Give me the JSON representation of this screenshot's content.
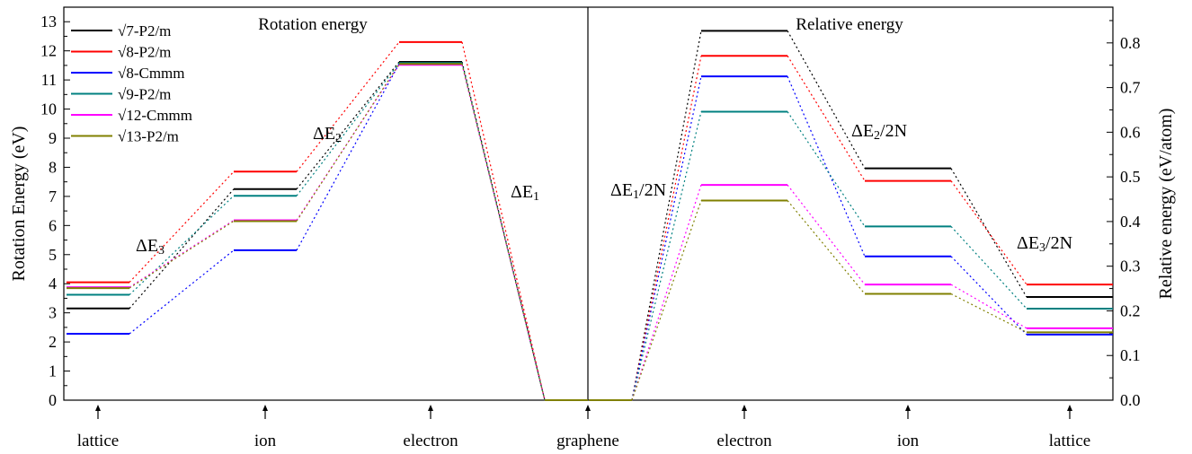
{
  "chart_data": {
    "type": "line",
    "left_panel": {
      "title": "Rotation energy",
      "ylabel": "Rotation Energy (eV)",
      "ylim": [
        0,
        13.5
      ],
      "yticks": [
        "0",
        "1",
        "2",
        "3",
        "4",
        "5",
        "6",
        "7",
        "8",
        "9",
        "10",
        "11",
        "12",
        "13"
      ],
      "categories": [
        "lattice",
        "ion",
        "electron",
        "graphene"
      ],
      "delta_labels": [
        {
          "text": "ΔE",
          "sub": "3"
        },
        {
          "text": "ΔE",
          "sub": "2"
        },
        {
          "text": "ΔE",
          "sub": "1"
        }
      ]
    },
    "right_panel": {
      "title": "Relative energy",
      "ylabel": "Relative energy (eV/atom)",
      "ylim": [
        0,
        0.88
      ],
      "yticks": [
        "0.0",
        "0.1",
        "0.2",
        "0.3",
        "0.4",
        "0.5",
        "0.6",
        "0.7",
        "0.8"
      ],
      "categories": [
        "graphene",
        "electron",
        "ion",
        "lattice"
      ],
      "delta_labels": [
        {
          "text": "ΔE",
          "sub": "1",
          "suffix": "/2N"
        },
        {
          "text": "ΔE",
          "sub": "2",
          "suffix": "/2N"
        },
        {
          "text": "ΔE",
          "sub": "3",
          "suffix": "/2N"
        }
      ]
    },
    "x_categories": [
      "lattice",
      "ion",
      "electron",
      "graphene",
      "electron",
      "ion",
      "lattice"
    ],
    "legend_placement": "top-left",
    "series": [
      {
        "name": "√7-P2/m",
        "color": "#000000",
        "rotation": [
          3.15,
          7.25,
          11.62,
          0
        ],
        "relative": [
          0,
          0.827,
          0.519,
          0.231
        ]
      },
      {
        "name": "√8-P2/m",
        "color": "#ff0000",
        "rotation": [
          4.05,
          7.85,
          12.3,
          0
        ],
        "relative": [
          0,
          0.771,
          0.491,
          0.259
        ]
      },
      {
        "name": "√8-Cmmm",
        "color": "#0000ff",
        "rotation": [
          2.28,
          5.15,
          11.55,
          0
        ],
        "relative": [
          0,
          0.725,
          0.322,
          0.147
        ]
      },
      {
        "name": "√9-P2/m",
        "color": "#008080",
        "rotation": [
          3.62,
          7.02,
          11.58,
          0
        ],
        "relative": [
          0,
          0.646,
          0.389,
          0.205
        ]
      },
      {
        "name": "√12-Cmmm",
        "color": "#ff00ff",
        "rotation": [
          3.88,
          6.18,
          11.52,
          0
        ],
        "relative": [
          0,
          0.482,
          0.259,
          0.161
        ]
      },
      {
        "name": "√13-P2/m",
        "color": "#808000",
        "rotation": [
          3.85,
          6.15,
          11.55,
          0
        ],
        "relative": [
          0,
          0.447,
          0.238,
          0.152
        ]
      }
    ]
  }
}
